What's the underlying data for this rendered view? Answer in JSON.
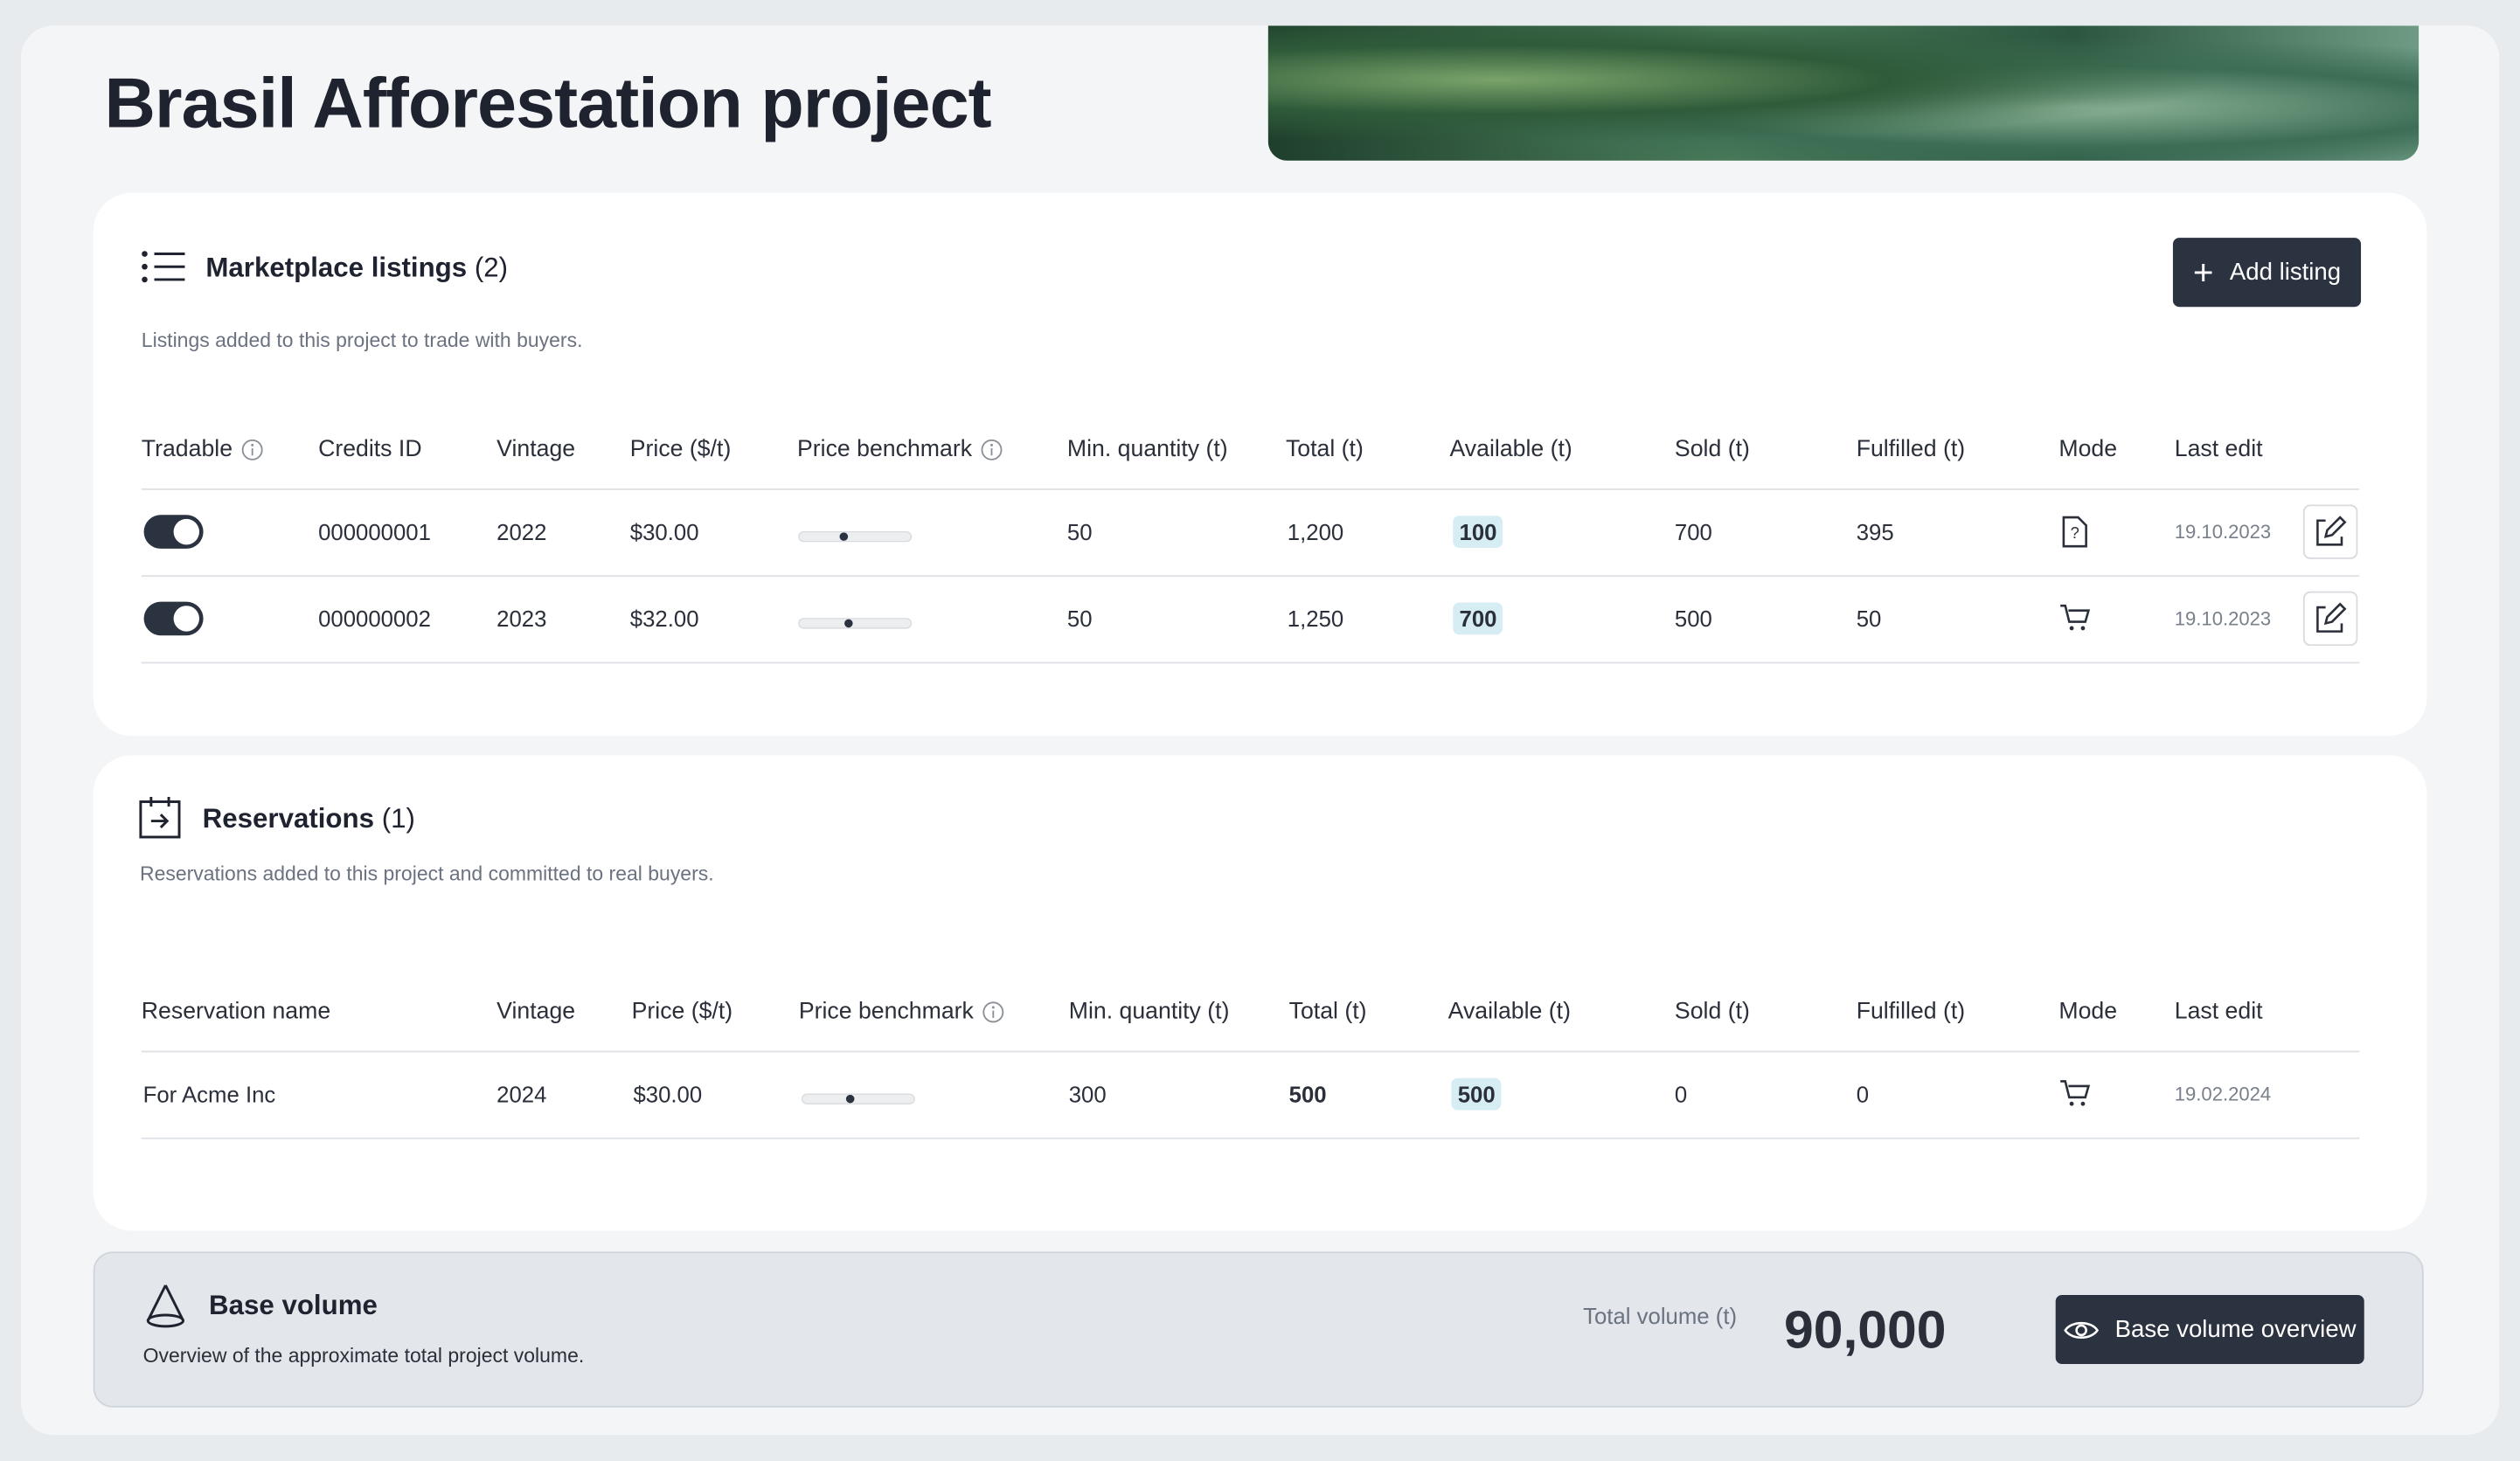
{
  "header": {
    "title": "Brasil Afforestation project"
  },
  "listings": {
    "title": "Marketplace listings",
    "count": "(2)",
    "description": "Listings added to this project to trade with buyers.",
    "button": "Add listing",
    "columns": [
      "Tradable",
      "Credits ID",
      "Vintage",
      "Price ($/t)",
      "Price benchmark",
      "Min. quantity (t)",
      "Total (t)",
      "Available (t)",
      "Sold (t)",
      "Fulfilled (t)",
      "Mode",
      "Last edit"
    ],
    "rows": [
      [
        "000000001",
        "2022",
        "$30.00",
        "50",
        "1,200",
        "100",
        "700",
        "395",
        "19.10.2023"
      ],
      [
        "000000002",
        "2023",
        "$32.00",
        "50",
        "1,250",
        "700",
        "500",
        "50",
        "19.10.2023"
      ]
    ]
  },
  "reservations": {
    "title": "Reservations",
    "count": "(1)",
    "description": "Reservations added to this project and committed to real buyers.",
    "columns": [
      "Reservation name",
      "Vintage",
      "Price ($/t)",
      "Price benchmark",
      "Min. quantity (t)",
      "Total (t)",
      "Available (t)",
      "Sold (t)",
      "Fulfilled (t)",
      "Mode",
      "Last edit"
    ],
    "rows": [
      [
        "For Acme Inc",
        "2024",
        "$30.00",
        "300",
        "500",
        "500",
        "0",
        "0",
        "19.02.2024"
      ]
    ]
  },
  "base_volume": {
    "title": "Base volume",
    "description": "Overview of the approximate total project volume.",
    "total_label": "Total volume (t)",
    "total_value": "90,000",
    "button": "Base volume overview"
  }
}
